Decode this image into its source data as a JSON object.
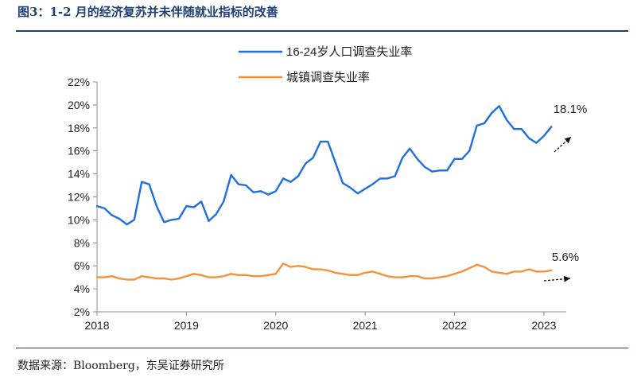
{
  "title": "图3：1-2 月的经济复苏并未伴随就业指标的改善",
  "source": "数据来源：Bloomberg，东吴证券研究所",
  "chart_data": {
    "type": "line",
    "ylim": [
      2,
      22
    ],
    "yticks": [
      "2%",
      "4%",
      "6%",
      "8%",
      "10%",
      "12%",
      "14%",
      "16%",
      "18%",
      "20%",
      "22%"
    ],
    "ytick_values": [
      2,
      4,
      6,
      8,
      10,
      12,
      14,
      16,
      18,
      20,
      22
    ],
    "xlim": [
      2018.0,
      2023.25
    ],
    "xticks": [
      "2018",
      "2019",
      "2020",
      "2021",
      "2022",
      "2023"
    ],
    "xtick_values": [
      2018,
      2019,
      2020,
      2021,
      2022,
      2023
    ],
    "x": [
      "2018-01",
      "2018-02",
      "2018-03",
      "2018-04",
      "2018-05",
      "2018-06",
      "2018-07",
      "2018-08",
      "2018-09",
      "2018-10",
      "2018-11",
      "2018-12",
      "2019-01",
      "2019-02",
      "2019-03",
      "2019-04",
      "2019-05",
      "2019-06",
      "2019-07",
      "2019-08",
      "2019-09",
      "2019-10",
      "2019-11",
      "2019-12",
      "2020-01",
      "2020-02",
      "2020-03",
      "2020-04",
      "2020-05",
      "2020-06",
      "2020-07",
      "2020-08",
      "2020-09",
      "2020-10",
      "2020-11",
      "2020-12",
      "2021-01",
      "2021-02",
      "2021-03",
      "2021-04",
      "2021-05",
      "2021-06",
      "2021-07",
      "2021-08",
      "2021-09",
      "2021-10",
      "2021-11",
      "2021-12",
      "2022-01",
      "2022-02",
      "2022-03",
      "2022-04",
      "2022-05",
      "2022-06",
      "2022-07",
      "2022-08",
      "2022-09",
      "2022-10",
      "2022-11",
      "2022-12",
      "2023-01",
      "2023-02"
    ],
    "series": [
      {
        "name": "16-24岁人口调查失业率",
        "color": "#1f6fe0",
        "values": [
          11.2,
          11.0,
          10.4,
          10.1,
          9.6,
          10.0,
          13.3,
          13.1,
          11.2,
          9.8,
          10.0,
          10.1,
          11.2,
          11.1,
          11.6,
          9.9,
          10.5,
          11.6,
          13.9,
          13.1,
          13.0,
          12.4,
          12.5,
          12.2,
          12.5,
          13.6,
          13.3,
          13.8,
          14.9,
          15.4,
          16.8,
          16.8,
          15.0,
          13.2,
          12.8,
          12.3,
          12.7,
          13.1,
          13.6,
          13.6,
          13.8,
          15.4,
          16.2,
          15.3,
          14.6,
          14.2,
          14.3,
          14.3,
          15.3,
          15.3,
          16.0,
          18.2,
          18.4,
          19.3,
          19.9,
          18.7,
          17.9,
          17.9,
          17.1,
          16.7,
          17.3,
          18.1
        ]
      },
      {
        "name": "城镇调查失业率",
        "color": "#f5923a",
        "values": [
          5.0,
          5.0,
          5.1,
          4.9,
          4.8,
          4.8,
          5.1,
          5.0,
          4.9,
          4.9,
          4.8,
          4.9,
          5.1,
          5.3,
          5.2,
          5.0,
          5.0,
          5.1,
          5.3,
          5.2,
          5.2,
          5.1,
          5.1,
          5.2,
          5.3,
          6.2,
          5.9,
          6.0,
          5.9,
          5.7,
          5.7,
          5.6,
          5.4,
          5.3,
          5.2,
          5.2,
          5.4,
          5.5,
          5.3,
          5.1,
          5.0,
          5.0,
          5.1,
          5.1,
          4.9,
          4.9,
          5.0,
          5.1,
          5.3,
          5.5,
          5.8,
          6.1,
          5.9,
          5.5,
          5.4,
          5.3,
          5.5,
          5.5,
          5.7,
          5.5,
          5.5,
          5.6
        ]
      }
    ],
    "annotations": [
      {
        "text": "18.1%",
        "series": 0
      },
      {
        "text": "5.6%",
        "series": 1
      }
    ]
  }
}
